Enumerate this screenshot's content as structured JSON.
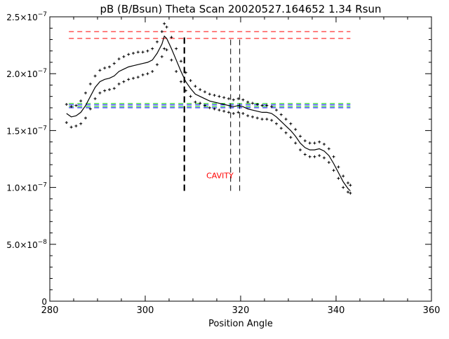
{
  "chart_data": {
    "type": "scatter",
    "title": "pB (B/Bsun) Theta Scan 20020527.164652 1.34 Rsun",
    "xlabel": "Position Angle",
    "ylabel": "",
    "xlim": [
      280,
      360
    ],
    "ylim": [
      0,
      2.5e-07
    ],
    "x_ticks": [
      280,
      300,
      320,
      340,
      360
    ],
    "y_ticks": [
      {
        "value": 0,
        "mant": "0",
        "exp": ""
      },
      {
        "value": 5e-08,
        "mant": "5.0×10",
        "exp": "−8"
      },
      {
        "value": 1e-07,
        "mant": "1.0×10",
        "exp": "−7"
      },
      {
        "value": 1.5e-07,
        "mant": "1.5×10",
        "exp": "−7"
      },
      {
        "value": 2e-07,
        "mant": "2.0×10",
        "exp": "−7"
      },
      {
        "value": 2.5e-07,
        "mant": "2.5×10",
        "exp": "−7"
      }
    ],
    "annotation": {
      "text": "CAVITY",
      "x": 318.5,
      "y": 1.08e-07,
      "color": "#ff0000"
    },
    "colors": {
      "red": "#ff0000",
      "green": "#00c800",
      "blue": "#0000ff",
      "black": "#000000"
    },
    "hlines": [
      {
        "y": 2.37e-07,
        "x": [
          284,
          343
        ],
        "color": "#ff0000",
        "style": "dashed"
      },
      {
        "y": 2.31e-07,
        "x": [
          284,
          343
        ],
        "color": "#ff0000",
        "style": "dashed"
      },
      {
        "y": 1.738e-07,
        "x": [
          284,
          343
        ],
        "color": "#00c800",
        "style": "dashed"
      },
      {
        "y": 1.726e-07,
        "x": [
          284,
          343
        ],
        "color": "#0000ff",
        "style": "dashed"
      },
      {
        "y": 1.712e-07,
        "x": [
          284,
          343
        ],
        "color": "#00c800",
        "style": "dashed"
      },
      {
        "y": 1.7e-07,
        "x": [
          284,
          343
        ],
        "color": "#0000ff",
        "style": "dashed"
      }
    ],
    "vlines": [
      {
        "x": 308.2,
        "y": [
          9.7e-08,
          2.33e-07
        ],
        "color": "#000000",
        "style": "dashed-thick"
      },
      {
        "x": 317.9,
        "y": [
          9.7e-08,
          2.33e-07
        ],
        "color": "#000000",
        "style": "dashed"
      },
      {
        "x": 319.8,
        "y": [
          9.7e-08,
          2.33e-07
        ],
        "color": "#000000",
        "style": "dashed"
      }
    ],
    "series": [
      {
        "style": "line",
        "color": "#000000",
        "x": [
          283.5,
          284.5,
          285.5,
          286.5,
          287.5,
          288.5,
          289.5,
          290.5,
          291.5,
          292.5,
          293.5,
          294.5,
          295.5,
          296.5,
          297.5,
          298.5,
          299.5,
          300.5,
          301.5,
          302.5,
          303.5,
          304.0,
          304.5,
          305.5,
          306.5,
          307.5,
          308.5,
          309.5,
          310.5,
          311.5,
          312.5,
          313.5,
          314.5,
          315.5,
          316.5,
          317.5,
          318.5,
          319.5,
          320.5,
          321.5,
          322.5,
          323.5,
          324.5,
          325.5,
          326.5,
          327.5,
          328.5,
          329.5,
          330.5,
          331.5,
          332.5,
          333.5,
          334.5,
          335.5,
          336.5,
          337.5,
          338.5,
          339.5,
          340.5,
          341.5,
          342.5,
          343.0
        ],
        "y": [
          1.65e-07,
          1.62e-07,
          1.63e-07,
          1.66e-07,
          1.72e-07,
          1.8e-07,
          1.88e-07,
          1.93e-07,
          1.95e-07,
          1.96e-07,
          1.98e-07,
          2.02e-07,
          2.04e-07,
          2.06e-07,
          2.07e-07,
          2.08e-07,
          2.09e-07,
          2.1e-07,
          2.12e-07,
          2.18e-07,
          2.26e-07,
          2.33e-07,
          2.31e-07,
          2.22e-07,
          2.12e-07,
          2.02e-07,
          1.93e-07,
          1.87e-07,
          1.82e-07,
          1.8e-07,
          1.78e-07,
          1.76e-07,
          1.75e-07,
          1.74e-07,
          1.73e-07,
          1.72e-07,
          1.71e-07,
          1.72e-07,
          1.71e-07,
          1.69e-07,
          1.68e-07,
          1.67e-07,
          1.66e-07,
          1.66e-07,
          1.65e-07,
          1.62e-07,
          1.58e-07,
          1.54e-07,
          1.5e-07,
          1.45e-07,
          1.39e-07,
          1.35e-07,
          1.33e-07,
          1.33e-07,
          1.34e-07,
          1.32e-07,
          1.28e-07,
          1.21e-07,
          1.13e-07,
          1.05e-07,
          9.9e-08,
          9.7e-08
        ]
      },
      {
        "style": "points",
        "color": "#000000",
        "x": [
          283.5,
          284.5,
          285.5,
          286.5,
          287.5,
          288.5,
          289.5,
          290.5,
          291.5,
          292.5,
          293.5,
          294.5,
          295.5,
          296.5,
          297.5,
          298.5,
          299.5,
          300.5,
          301.5,
          302.5,
          303.5,
          304.0,
          304.5,
          305.5,
          306.5,
          307.5,
          308.5,
          309.5,
          310.5,
          311.5,
          312.5,
          313.5,
          314.5,
          315.5,
          316.5,
          317.5,
          318.5,
          319.5,
          320.5,
          321.5,
          322.5,
          323.5,
          324.5,
          325.5,
          326.5,
          327.5,
          328.5,
          329.5,
          330.5,
          331.5,
          332.5,
          333.5,
          334.5,
          335.5,
          336.5,
          337.5,
          338.5,
          339.5,
          340.5,
          341.5,
          342.5,
          343.0
        ],
        "y": [
          1.73e-07,
          1.71e-07,
          1.72e-07,
          1.76e-07,
          1.83e-07,
          1.91e-07,
          1.98e-07,
          2.03e-07,
          2.05e-07,
          2.06e-07,
          2.09e-07,
          2.13e-07,
          2.15e-07,
          2.17e-07,
          2.18e-07,
          2.19e-07,
          2.19e-07,
          2.2e-07,
          2.22e-07,
          2.28e-07,
          2.37e-07,
          2.44e-07,
          2.41e-07,
          2.32e-07,
          2.22e-07,
          2.11e-07,
          2.01e-07,
          1.94e-07,
          1.89e-07,
          1.86e-07,
          1.84e-07,
          1.82e-07,
          1.81e-07,
          1.8e-07,
          1.79e-07,
          1.78e-07,
          1.77e-07,
          1.78e-07,
          1.77e-07,
          1.75e-07,
          1.74e-07,
          1.73e-07,
          1.72e-07,
          1.72e-07,
          1.71e-07,
          1.68e-07,
          1.64e-07,
          1.6e-07,
          1.56e-07,
          1.51e-07,
          1.45e-07,
          1.41e-07,
          1.39e-07,
          1.39e-07,
          1.4e-07,
          1.38e-07,
          1.34e-07,
          1.27e-07,
          1.18e-07,
          1.1e-07,
          1.04e-07,
          1.02e-07
        ]
      },
      {
        "style": "points",
        "color": "#000000",
        "x": [
          283.5,
          284.5,
          285.5,
          286.5,
          287.5,
          288.5,
          289.5,
          290.5,
          291.5,
          292.5,
          293.5,
          294.5,
          295.5,
          296.5,
          297.5,
          298.5,
          299.5,
          300.5,
          301.5,
          302.5,
          303.5,
          304.0,
          304.5,
          305.5,
          306.5,
          307.5,
          308.5,
          309.5,
          310.5,
          311.5,
          312.5,
          313.5,
          314.5,
          315.5,
          316.5,
          317.5,
          318.5,
          319.5,
          320.5,
          321.5,
          322.5,
          323.5,
          324.5,
          325.5,
          326.5,
          327.5,
          328.5,
          329.5,
          330.5,
          331.5,
          332.5,
          333.5,
          334.5,
          335.5,
          336.5,
          337.5,
          338.5,
          339.5,
          340.5,
          341.5,
          342.5,
          343.0
        ],
        "y": [
          1.57e-07,
          1.53e-07,
          1.54e-07,
          1.56e-07,
          1.61e-07,
          1.69e-07,
          1.78e-07,
          1.83e-07,
          1.85e-07,
          1.86e-07,
          1.87e-07,
          1.91e-07,
          1.93e-07,
          1.95e-07,
          1.96e-07,
          1.97e-07,
          1.99e-07,
          2e-07,
          2.02e-07,
          2.08e-07,
          2.15e-07,
          2.22e-07,
          2.21e-07,
          2.12e-07,
          2.02e-07,
          1.93e-07,
          1.85e-07,
          1.8e-07,
          1.75e-07,
          1.74e-07,
          1.72e-07,
          1.7e-07,
          1.69e-07,
          1.68e-07,
          1.67e-07,
          1.66e-07,
          1.65e-07,
          1.66e-07,
          1.65e-07,
          1.63e-07,
          1.62e-07,
          1.61e-07,
          1.6e-07,
          1.6e-07,
          1.59e-07,
          1.56e-07,
          1.52e-07,
          1.48e-07,
          1.44e-07,
          1.39e-07,
          1.33e-07,
          1.29e-07,
          1.27e-07,
          1.27e-07,
          1.28e-07,
          1.26e-07,
          1.22e-07,
          1.15e-07,
          1.08e-07,
          1e-07,
          9.6e-08,
          9.5e-08
        ]
      }
    ]
  }
}
